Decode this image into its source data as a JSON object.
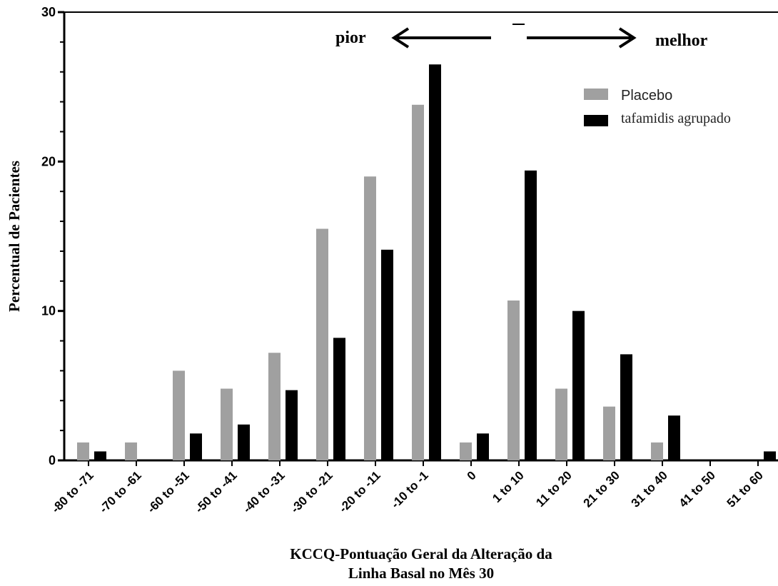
{
  "chart_data": {
    "type": "bar",
    "title": "",
    "xlabel_lines": [
      "KCCQ-Pontuação Geral da Alteração da",
      "Linha Basal no Mês 30"
    ],
    "ylabel": "Percentual de Pacientes",
    "ylim": [
      0,
      30
    ],
    "yticks": [
      0,
      10,
      20,
      30
    ],
    "categories": [
      "-80 to -71",
      "-70 to -61",
      "-60 to -51",
      "-50 to -41",
      "-40 to -31",
      "-30 to -21",
      "-20 to -11",
      "-10 to -1",
      "0",
      "1 to 10",
      "11 to 20",
      "21 to 30",
      "31 to 40",
      "41 to 50",
      "51 to 60"
    ],
    "series": [
      {
        "name": "Placebo",
        "color": "#a0a0a0",
        "values": [
          1.2,
          1.2,
          6.0,
          4.8,
          7.2,
          15.5,
          19.0,
          23.8,
          1.2,
          10.7,
          4.8,
          3.6,
          1.2,
          0,
          0
        ]
      },
      {
        "name": "tafamidis agrupado",
        "color": "#000000",
        "values": [
          0.6,
          0,
          1.8,
          2.4,
          4.7,
          8.2,
          14.1,
          26.5,
          1.8,
          19.4,
          10.0,
          7.1,
          3.0,
          0,
          0.6
        ]
      }
    ],
    "legend_position": "top-right",
    "grid": false,
    "annotations": {
      "left_label": "pior",
      "right_label": "melhor"
    }
  }
}
